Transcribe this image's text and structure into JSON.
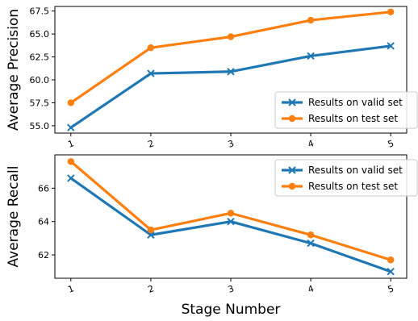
{
  "colors": {
    "valid": "#1f77b4",
    "test": "#ff7f0e",
    "legend_border": "#cccccc"
  },
  "chart_data": [
    {
      "type": "line",
      "title": "",
      "xlabel": "",
      "ylabel": "Average Precision",
      "categories": [
        "1",
        "2",
        "3",
        "4",
        "5"
      ],
      "x": [
        1,
        2,
        3,
        4,
        5
      ],
      "ylim": [
        54.2,
        68.0
      ],
      "yticks": [
        55.0,
        57.5,
        60.0,
        62.5,
        65.0,
        67.5
      ],
      "ytick_labels": [
        "55.0",
        "57.5",
        "60.0",
        "62.5",
        "65.0",
        "67.5"
      ],
      "grid": false,
      "legend": "bottom-right",
      "series": [
        {
          "name": "Results on valid set",
          "marker": "x",
          "values": [
            54.8,
            60.7,
            60.9,
            62.6,
            63.7
          ]
        },
        {
          "name": "Results on test set",
          "marker": "o",
          "values": [
            57.5,
            63.5,
            64.7,
            66.5,
            67.4
          ]
        }
      ]
    },
    {
      "type": "line",
      "title": "",
      "xlabel": "Stage Number",
      "ylabel": "Average Recall",
      "categories": [
        "1",
        "2",
        "3",
        "4",
        "5"
      ],
      "x": [
        1,
        2,
        3,
        4,
        5
      ],
      "ylim": [
        60.6,
        68.0
      ],
      "yticks": [
        62,
        64,
        66
      ],
      "ytick_labels": [
        "62",
        "64",
        "66"
      ],
      "grid": false,
      "legend": "top-right",
      "series": [
        {
          "name": "Results on valid set",
          "marker": "x",
          "values": [
            66.6,
            63.2,
            64.0,
            62.7,
            61.0
          ]
        },
        {
          "name": "Results on test set",
          "marker": "o",
          "values": [
            67.6,
            63.5,
            64.5,
            63.2,
            61.7
          ]
        }
      ]
    }
  ]
}
